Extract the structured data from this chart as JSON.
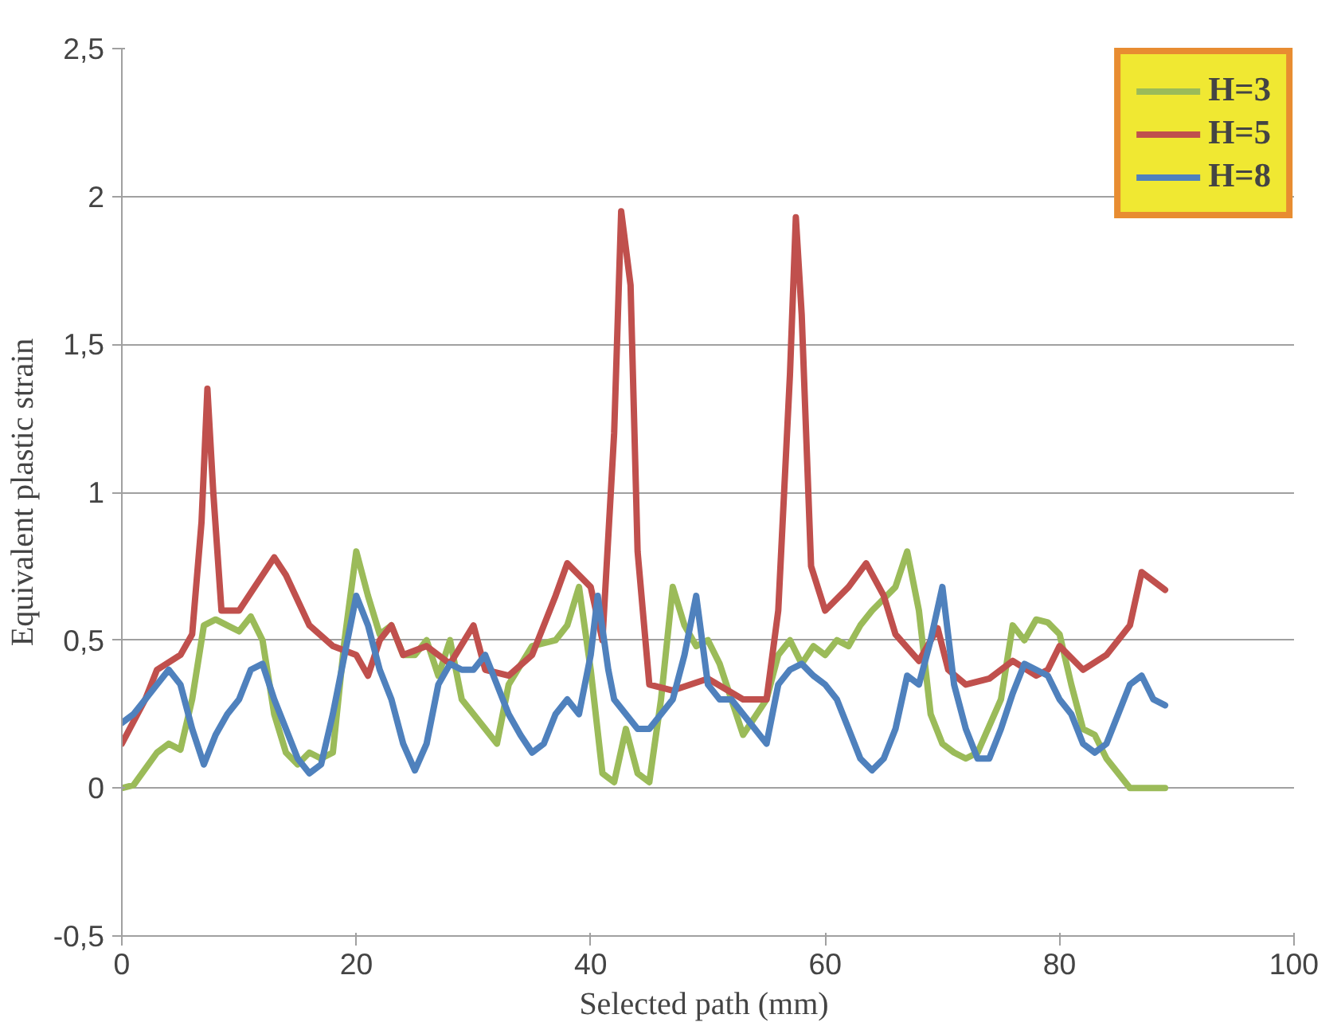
{
  "chart_data": {
    "type": "line",
    "xlabel": "Selected path  (mm)",
    "ylabel": "Equivalent plastic strain",
    "xlim": [
      0,
      100
    ],
    "xticks": [
      0,
      20,
      40,
      60,
      80,
      100
    ],
    "ylim": [
      -0.5,
      2.5
    ],
    "yticks": [
      {
        "value": -0.5,
        "label": "-0,5"
      },
      0,
      {
        "value": 0.5,
        "label": "0,5"
      },
      1,
      {
        "value": 1.5,
        "label": "1,5"
      },
      2,
      {
        "value": 2.5,
        "label": "2,5"
      }
    ],
    "grid": "y",
    "legend": "top right",
    "series": [
      {
        "name": "H=3",
        "color": "#9bbb59",
        "x": [
          0,
          1,
          3,
          4,
          5,
          6,
          7,
          8,
          9,
          10,
          11,
          12,
          13,
          14,
          15,
          16,
          17,
          18,
          19,
          20,
          21,
          22,
          23,
          24,
          25,
          26,
          27,
          28,
          29,
          31,
          32,
          33,
          35,
          37,
          38,
          39,
          40,
          41,
          42,
          43,
          44,
          45,
          46,
          47,
          48,
          49,
          50,
          51,
          52,
          53,
          55,
          56,
          57,
          58,
          59,
          60,
          61,
          62,
          63,
          64,
          66,
          67,
          68,
          69,
          70,
          71,
          72,
          73,
          75,
          76,
          77,
          78,
          79,
          80,
          81,
          82,
          83,
          84,
          85,
          86,
          89
        ],
        "values": [
          0,
          0.01,
          0.12,
          0.15,
          0.13,
          0.3,
          0.55,
          0.57,
          0.55,
          0.53,
          0.58,
          0.5,
          0.25,
          0.12,
          0.08,
          0.12,
          0.1,
          0.12,
          0.5,
          0.8,
          0.65,
          0.52,
          0.55,
          0.45,
          0.45,
          0.5,
          0.38,
          0.5,
          0.3,
          0.2,
          0.15,
          0.35,
          0.48,
          0.5,
          0.55,
          0.68,
          0.4,
          0.05,
          0.02,
          0.2,
          0.05,
          0.02,
          0.3,
          0.68,
          0.55,
          0.48,
          0.5,
          0.42,
          0.3,
          0.18,
          0.3,
          0.45,
          0.5,
          0.42,
          0.48,
          0.45,
          0.5,
          0.48,
          0.55,
          0.6,
          0.68,
          0.8,
          0.6,
          0.25,
          0.15,
          0.12,
          0.1,
          0.12,
          0.3,
          0.55,
          0.5,
          0.57,
          0.56,
          0.52,
          0.35,
          0.2,
          0.18,
          0.1,
          0.05,
          0,
          0
        ]
      },
      {
        "name": "H=5",
        "color": "#c0504d",
        "x": [
          0,
          2,
          3,
          5,
          6,
          6.8,
          7.3,
          7.8,
          8.5,
          10,
          13,
          14,
          16,
          18,
          20,
          21,
          22,
          23,
          24,
          26,
          28,
          30,
          31,
          33,
          35,
          37,
          38,
          40,
          41,
          42,
          42.6,
          43.4,
          44,
          45,
          47,
          50,
          53,
          55,
          56,
          57,
          57.5,
          58,
          58.8,
          60,
          62,
          63.5,
          65,
          66,
          68,
          69.6,
          70.5,
          72,
          74,
          76,
          78,
          79,
          80,
          82,
          84,
          86,
          87,
          89
        ],
        "values": [
          0.15,
          0.3,
          0.4,
          0.45,
          0.52,
          0.9,
          1.35,
          1.0,
          0.6,
          0.6,
          0.78,
          0.72,
          0.55,
          0.48,
          0.45,
          0.38,
          0.5,
          0.55,
          0.45,
          0.48,
          0.42,
          0.55,
          0.4,
          0.38,
          0.45,
          0.65,
          0.76,
          0.68,
          0.5,
          1.2,
          1.95,
          1.7,
          0.8,
          0.35,
          0.33,
          0.37,
          0.3,
          0.3,
          0.6,
          1.4,
          1.93,
          1.6,
          0.75,
          0.6,
          0.68,
          0.76,
          0.65,
          0.52,
          0.43,
          0.54,
          0.4,
          0.35,
          0.37,
          0.43,
          0.38,
          0.4,
          0.48,
          0.4,
          0.45,
          0.55,
          0.73,
          0.67
        ]
      },
      {
        "name": "H=8",
        "color": "#4f81bd",
        "x": [
          0,
          1,
          2,
          3,
          4,
          5,
          6,
          7,
          8,
          9,
          10,
          11,
          12,
          13,
          14,
          15,
          16,
          17,
          18,
          19,
          20,
          21,
          22,
          23,
          24,
          25,
          26,
          27,
          28,
          29,
          30,
          31,
          32,
          33,
          34,
          35,
          36,
          37,
          38,
          39,
          40,
          40.6,
          41.5,
          42,
          43,
          44,
          45,
          46,
          47,
          48,
          49,
          50,
          51,
          52,
          53,
          54,
          55,
          56,
          57,
          58,
          59,
          60,
          61,
          62,
          63,
          64,
          65,
          66,
          67,
          68,
          69,
          70,
          71,
          72,
          73,
          74,
          75,
          76,
          77,
          78,
          79,
          80,
          81,
          82,
          83,
          84,
          85,
          86,
          87,
          88,
          89
        ],
        "values": [
          0.22,
          0.25,
          0.3,
          0.35,
          0.4,
          0.35,
          0.2,
          0.08,
          0.18,
          0.25,
          0.3,
          0.4,
          0.42,
          0.3,
          0.2,
          0.1,
          0.05,
          0.08,
          0.25,
          0.45,
          0.65,
          0.55,
          0.4,
          0.3,
          0.15,
          0.06,
          0.15,
          0.35,
          0.42,
          0.4,
          0.4,
          0.45,
          0.35,
          0.25,
          0.18,
          0.12,
          0.15,
          0.25,
          0.3,
          0.25,
          0.45,
          0.65,
          0.4,
          0.3,
          0.25,
          0.2,
          0.2,
          0.25,
          0.3,
          0.45,
          0.65,
          0.35,
          0.3,
          0.3,
          0.25,
          0.2,
          0.15,
          0.35,
          0.4,
          0.42,
          0.38,
          0.35,
          0.3,
          0.2,
          0.1,
          0.06,
          0.1,
          0.2,
          0.38,
          0.35,
          0.5,
          0.68,
          0.35,
          0.2,
          0.1,
          0.1,
          0.2,
          0.32,
          0.42,
          0.4,
          0.38,
          0.3,
          0.25,
          0.15,
          0.12,
          0.15,
          0.25,
          0.35,
          0.38,
          0.3,
          0.28
        ]
      }
    ]
  }
}
